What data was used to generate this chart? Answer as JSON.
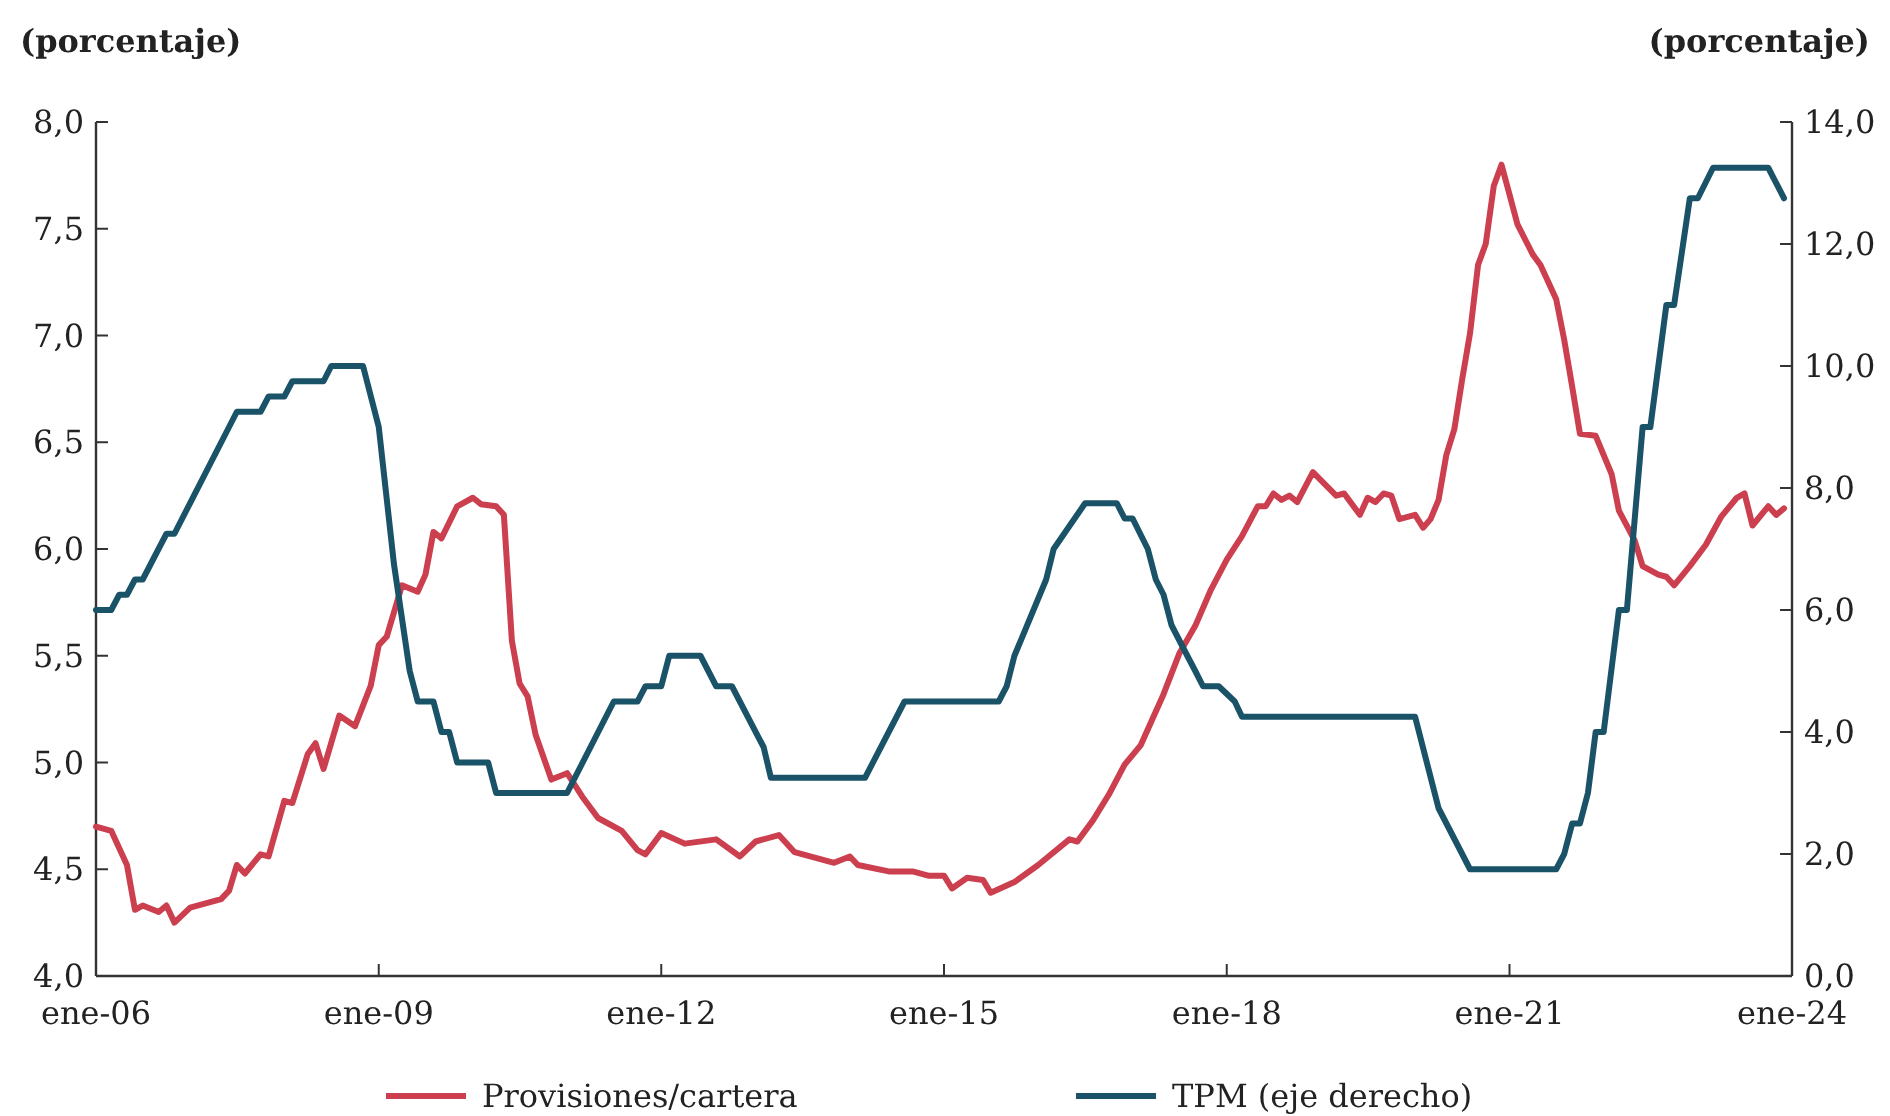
{
  "chart_data": {
    "type": "line",
    "ylabel": "(porcentaje)",
    "y2label": "(porcentaje)",
    "legend": "bottom",
    "grid": false,
    "line_style": "solid",
    "xlim": [
      "2006-01",
      "2024-01"
    ],
    "xticks": [
      {
        "value": "2006-01",
        "label": "ene-06"
      },
      {
        "value": "2009-01",
        "label": "ene-09"
      },
      {
        "value": "2012-01",
        "label": "ene-12"
      },
      {
        "value": "2015-01",
        "label": "ene-15"
      },
      {
        "value": "2018-01",
        "label": "ene-18"
      },
      {
        "value": "2021-01",
        "label": "ene-21"
      },
      {
        "value": "2024-01",
        "label": "ene-24"
      }
    ],
    "ylim": [
      4,
      8
    ],
    "yticks": [
      {
        "value": 4,
        "label": "4,0"
      },
      {
        "value": 4.5,
        "label": "4,5"
      },
      {
        "value": 5,
        "label": "5,0"
      },
      {
        "value": 5.5,
        "label": "5,5"
      },
      {
        "value": 6,
        "label": "6,0"
      },
      {
        "value": 6.5,
        "label": "6,5"
      },
      {
        "value": 7,
        "label": "7,0"
      },
      {
        "value": 7.5,
        "label": "7,5"
      },
      {
        "value": 8,
        "label": "8,0"
      }
    ],
    "y2lim": [
      0,
      14
    ],
    "y2ticks": [
      {
        "value": 0,
        "label": "0,0"
      },
      {
        "value": 2,
        "label": "2,0"
      },
      {
        "value": 4,
        "label": "4,0"
      },
      {
        "value": 6,
        "label": "6,0"
      },
      {
        "value": 8,
        "label": "8,0"
      },
      {
        "value": 10,
        "label": "10,0"
      },
      {
        "value": 12,
        "label": "12,0"
      },
      {
        "value": 14,
        "label": "14,0"
      }
    ],
    "series": [
      {
        "name": "Provisiones/cartera",
        "color": "#cc3f4f",
        "x": [
          "2006-01",
          "2006-03",
          "2006-05",
          "2006-06",
          "2006-07",
          "2006-09",
          "2006-10",
          "2006-11",
          "2007-01",
          "2007-05",
          "2007-06",
          "2007-07",
          "2007-08",
          "2007-10",
          "2007-11",
          "2008-01",
          "2008-02",
          "2008-04",
          "2008-05",
          "2008-06",
          "2008-08",
          "2008-10",
          "2008-12",
          "2009-01",
          "2009-02",
          "2009-04",
          "2009-06",
          "2009-07",
          "2009-08",
          "2009-09",
          "2009-11",
          "2010-01",
          "2010-02",
          "2010-04",
          "2010-05",
          "2010-06",
          "2010-07",
          "2010-08",
          "2010-09",
          "2010-11",
          "2011-01",
          "2011-03",
          "2011-05",
          "2011-08",
          "2011-10",
          "2011-11",
          "2012-01",
          "2012-04",
          "2012-08",
          "2012-11",
          "2013-01",
          "2013-04",
          "2013-06",
          "2013-11",
          "2014-01",
          "2014-02",
          "2014-06",
          "2014-09",
          "2014-11",
          "2015-01",
          "2015-02",
          "2015-04",
          "2015-06",
          "2015-07",
          "2015-10",
          "2016-01",
          "2016-05",
          "2016-06",
          "2016-08",
          "2016-10",
          "2016-12",
          "2017-02",
          "2017-05",
          "2017-07",
          "2017-09",
          "2017-11",
          "2018-01",
          "2018-03",
          "2018-05",
          "2018-06",
          "2018-07",
          "2018-08",
          "2018-09",
          "2018-10",
          "2018-12",
          "2019-03",
          "2019-04",
          "2019-06",
          "2019-07",
          "2019-08",
          "2019-09",
          "2019-10",
          "2019-11",
          "2020-01",
          "2020-02",
          "2020-03",
          "2020-04",
          "2020-05",
          "2020-06",
          "2020-07",
          "2020-08",
          "2020-09",
          "2020-10",
          "2020-11",
          "2020-12",
          "2021-01",
          "2021-02",
          "2021-04",
          "2021-05",
          "2021-07",
          "2021-08",
          "2021-09",
          "2021-10",
          "2021-12",
          "2022-02",
          "2022-03",
          "2022-05",
          "2022-06",
          "2022-08",
          "2022-09",
          "2022-10",
          "2022-12",
          "2023-02",
          "2023-04",
          "2023-06",
          "2023-07",
          "2023-08",
          "2023-10",
          "2023-11",
          "2023-12"
        ],
        "values": [
          4.7,
          4.68,
          4.52,
          4.31,
          4.33,
          4.3,
          4.33,
          4.25,
          4.32,
          4.36,
          4.4,
          4.52,
          4.48,
          4.57,
          4.56,
          4.82,
          4.81,
          5.04,
          5.09,
          4.97,
          5.22,
          5.17,
          5.36,
          5.55,
          5.59,
          5.83,
          5.8,
          5.88,
          6.08,
          6.05,
          6.2,
          6.24,
          6.21,
          6.2,
          6.16,
          5.57,
          5.37,
          5.31,
          5.13,
          4.92,
          4.95,
          4.84,
          4.74,
          4.68,
          4.59,
          4.57,
          4.67,
          4.62,
          4.64,
          4.56,
          4.63,
          4.66,
          4.58,
          4.53,
          4.56,
          4.52,
          4.49,
          4.49,
          4.47,
          4.47,
          4.41,
          4.46,
          4.45,
          4.39,
          4.44,
          4.52,
          4.64,
          4.63,
          4.73,
          4.85,
          4.99,
          5.08,
          5.32,
          5.51,
          5.64,
          5.81,
          5.95,
          6.06,
          6.2,
          6.2,
          6.26,
          6.23,
          6.25,
          6.22,
          6.36,
          6.25,
          6.26,
          6.16,
          6.24,
          6.22,
          6.26,
          6.25,
          6.14,
          6.16,
          6.1,
          6.14,
          6.23,
          6.44,
          6.56,
          6.79,
          7.01,
          7.33,
          7.43,
          7.7,
          7.8,
          7.66,
          7.52,
          7.38,
          7.33,
          7.17,
          6.98,
          6.76,
          6.54,
          6.53,
          6.35,
          6.18,
          6.04,
          5.92,
          5.88,
          5.87,
          5.83,
          5.92,
          6.02,
          6.15,
          6.24,
          6.26,
          6.11,
          6.2,
          6.16,
          6.19
        ]
      },
      {
        "name": "TPM (eje derecho)",
        "color": "#1a5368",
        "axis": "y2",
        "x": [
          "2006-01",
          "2006-03",
          "2006-04",
          "2006-05",
          "2006-06",
          "2006-07",
          "2006-10",
          "2006-11",
          "2007-07",
          "2007-10",
          "2007-11",
          "2008-01",
          "2008-02",
          "2008-06",
          "2008-07",
          "2008-11",
          "2009-01",
          "2009-03",
          "2009-05",
          "2009-06",
          "2009-08",
          "2009-09",
          "2009-10",
          "2009-11",
          "2010-03",
          "2010-04",
          "2011-01",
          "2011-07",
          "2011-10",
          "2011-11",
          "2012-01",
          "2012-02",
          "2012-06",
          "2012-08",
          "2012-10",
          "2013-02",
          "2013-03",
          "2014-03",
          "2014-08",
          "2015-08",
          "2015-09",
          "2015-10",
          "2016-02",
          "2016-03",
          "2016-07",
          "2016-11",
          "2016-12",
          "2017-01",
          "2017-03",
          "2017-04",
          "2017-05",
          "2017-06",
          "2017-08",
          "2017-09",
          "2017-10",
          "2017-12",
          "2018-02",
          "2018-03",
          "2020-01",
          "2020-04",
          "2020-08",
          "2021-07",
          "2021-08",
          "2021-09",
          "2021-10",
          "2021-11",
          "2021-12",
          "2022-01",
          "2022-03",
          "2022-04",
          "2022-06",
          "2022-07",
          "2022-09",
          "2022-10",
          "2022-12",
          "2023-01",
          "2023-03",
          "2023-10",
          "2023-12"
        ],
        "values": [
          6.0,
          6.0,
          6.25,
          6.25,
          6.5,
          6.5,
          7.25,
          7.25,
          9.25,
          9.25,
          9.5,
          9.5,
          9.75,
          9.75,
          10.0,
          10.0,
          9.0,
          6.75,
          5.0,
          4.5,
          4.5,
          4.0,
          4.0,
          3.5,
          3.5,
          3.0,
          3.0,
          4.5,
          4.5,
          4.75,
          4.75,
          5.25,
          5.25,
          4.75,
          4.75,
          3.75,
          3.25,
          3.25,
          4.5,
          4.5,
          4.75,
          5.25,
          6.5,
          7.0,
          7.75,
          7.75,
          7.5,
          7.5,
          7.0,
          6.5,
          6.25,
          5.75,
          5.25,
          5.0,
          4.75,
          4.75,
          4.5,
          4.25,
          4.25,
          2.75,
          1.75,
          1.75,
          2.0,
          2.5,
          2.5,
          3.0,
          4.0,
          4.0,
          6.0,
          6.0,
          9.0,
          9.0,
          11.0,
          11.0,
          12.75,
          12.75,
          13.25,
          13.25,
          12.75
        ]
      }
    ]
  }
}
